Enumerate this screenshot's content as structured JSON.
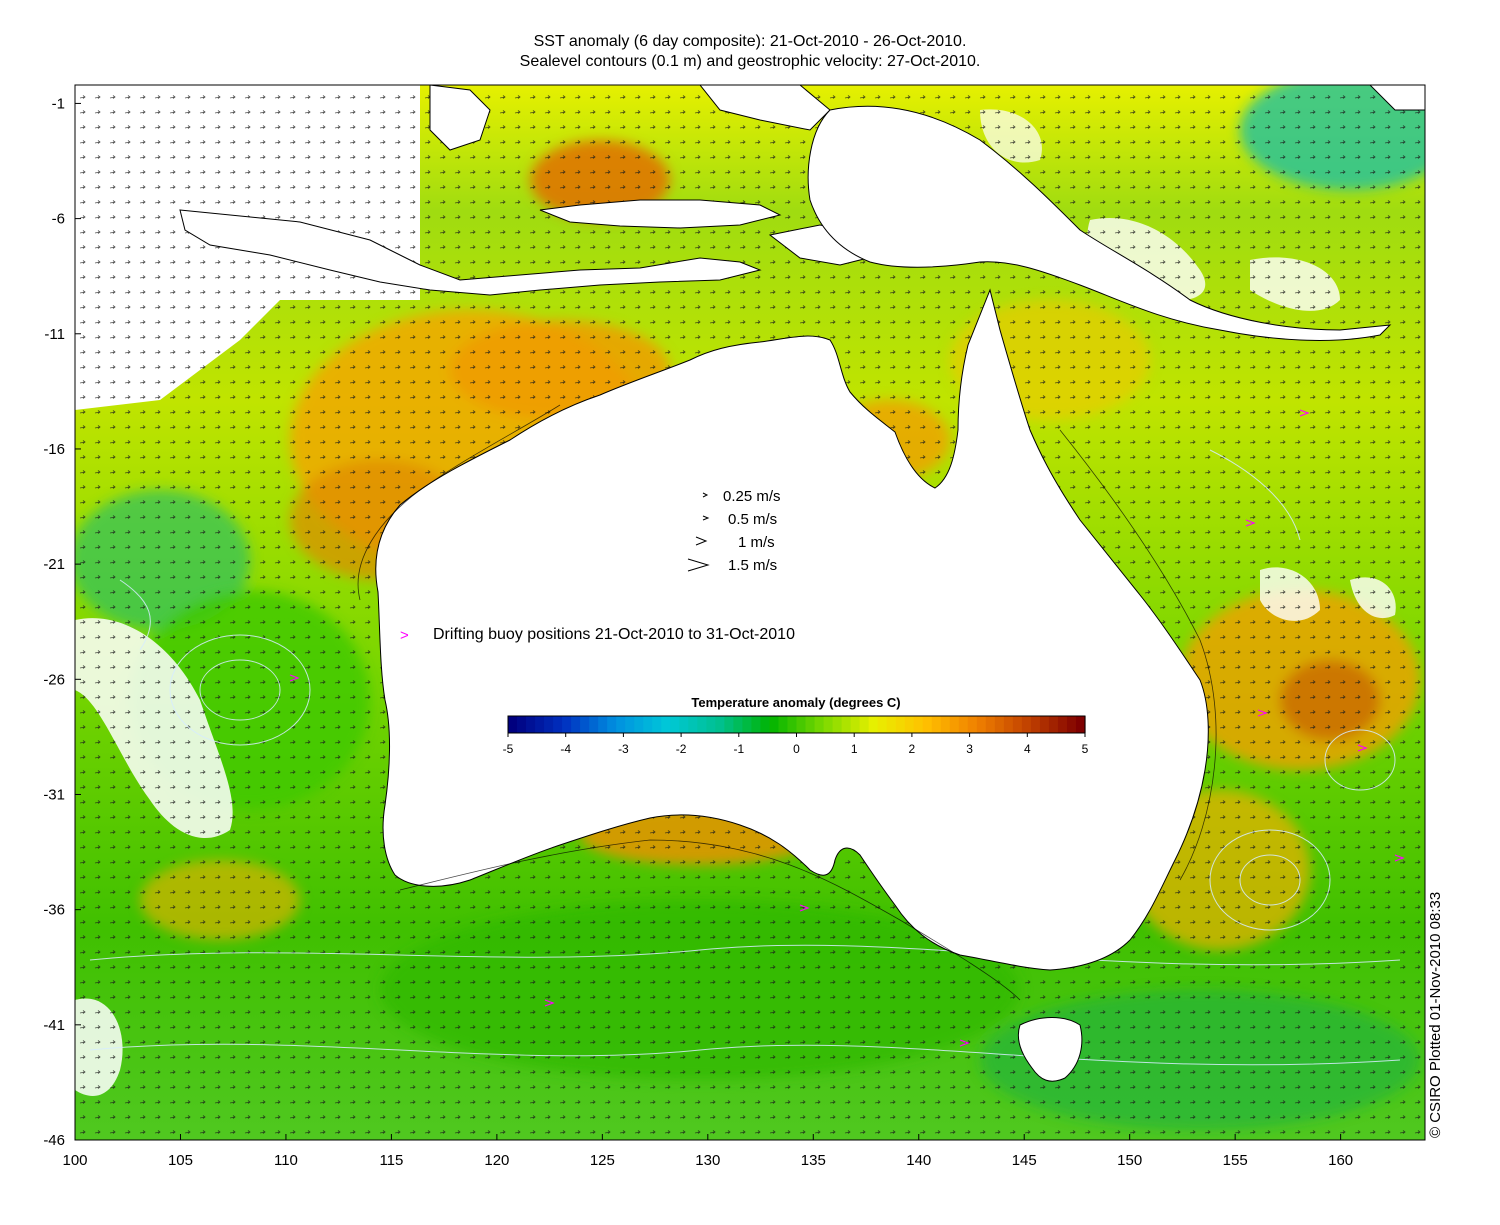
{
  "title": {
    "line1": "SST anomaly (6 day composite): 21-Oct-2010 - 26-Oct-2010.",
    "line2": "Sealevel contours (0.1 m) and geostrophic velocity: 27-Oct-2010."
  },
  "axes": {
    "x_ticks": [
      "100",
      "105",
      "110",
      "115",
      "120",
      "125",
      "130",
      "135",
      "140",
      "145",
      "150",
      "155",
      "160"
    ],
    "y_ticks": [
      "-1",
      "-6",
      "-11",
      "-16",
      "-21",
      "-26",
      "-31",
      "-36",
      "-41",
      "-46"
    ],
    "x_range": [
      100,
      164
    ],
    "y_range": [
      -46,
      -0.2
    ]
  },
  "velocity_legend": [
    {
      "label": "0.25 m/s",
      "speed": 0.25
    },
    {
      "label": "0.5 m/s",
      "speed": 0.5
    },
    {
      "label": "1 m/s",
      "speed": 1
    },
    {
      "label": "1.5 m/s",
      "speed": 1.5
    }
  ],
  "buoy_legend": {
    "symbol": ">",
    "label": "Drifting buoy positions 21-Oct-2010 to 31-Oct-2010",
    "color": "#ff00ff"
  },
  "colorbar": {
    "title": "Temperature anomaly (degrees C)",
    "ticks": [
      "-5",
      "-4",
      "-3",
      "-2",
      "-1",
      "0",
      "1",
      "2",
      "3",
      "4",
      "5"
    ],
    "range": [
      -5,
      5
    ],
    "colors": [
      "#00007f",
      "#0030c0",
      "#0090e0",
      "#00c8d8",
      "#00c090",
      "#00b400",
      "#7ad800",
      "#e8f000",
      "#ffc000",
      "#f08000",
      "#c04000",
      "#7f0000"
    ]
  },
  "credit": "© CSIRO Plotted 01-Nov-2010 08:33",
  "palette": {
    "land": "#ffffff",
    "coast": "#000000",
    "contour": "#c8e6ff"
  }
}
